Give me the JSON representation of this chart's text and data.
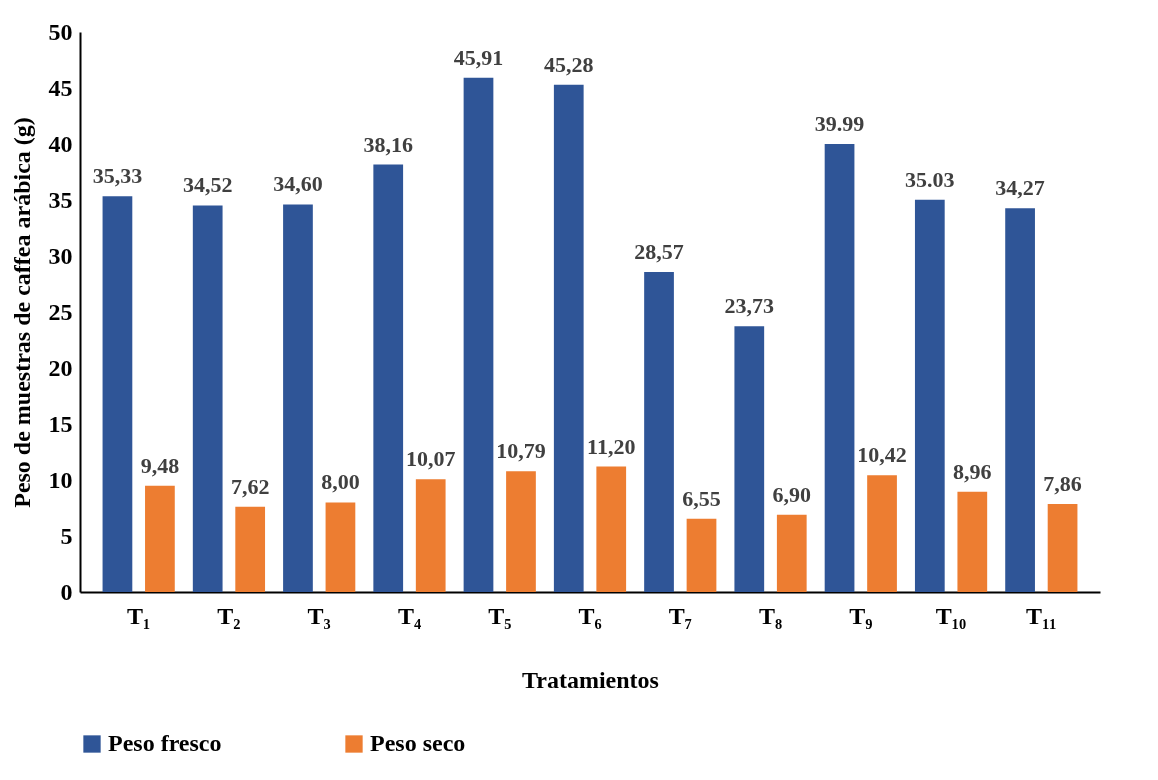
{
  "chart_data": {
    "type": "bar",
    "xlabel": "Tratamientos",
    "ylabel": "Peso de muestras de caffea arábica (g)",
    "categories": [
      "T₁",
      "T₂",
      "T₃",
      "T₄",
      "T₅",
      "T₆",
      "T₇",
      "T₈",
      "T₉",
      "T₁₀",
      "T₁₁"
    ],
    "series": [
      {
        "name": "Peso fresco",
        "color": "#2f5597",
        "values": [
          35.33,
          34.52,
          34.6,
          38.16,
          45.91,
          45.28,
          28.57,
          23.73,
          39.99,
          35.03,
          34.27
        ],
        "value_labels": [
          "35,33",
          "34,52",
          "34,60",
          "38,16",
          "45,91",
          "45,28",
          "28,57",
          "23,73",
          "39.99",
          "35.03",
          "34,27"
        ]
      },
      {
        "name": "Peso seco",
        "color": "#ed7d31",
        "values": [
          9.48,
          7.62,
          8.0,
          10.07,
          10.79,
          11.2,
          6.55,
          6.9,
          10.42,
          8.96,
          7.86
        ],
        "value_labels": [
          "9,48",
          "7,62",
          "8,00",
          "10,07",
          "10,79",
          "11,20",
          "6,55",
          "6,90",
          "10,42",
          "8,96",
          "7,86"
        ]
      }
    ],
    "ylim": [
      0,
      50
    ],
    "yticks": [
      0,
      5,
      10,
      15,
      20,
      25,
      30,
      35,
      40,
      45,
      50
    ],
    "grid": false,
    "legend": "bottom"
  }
}
